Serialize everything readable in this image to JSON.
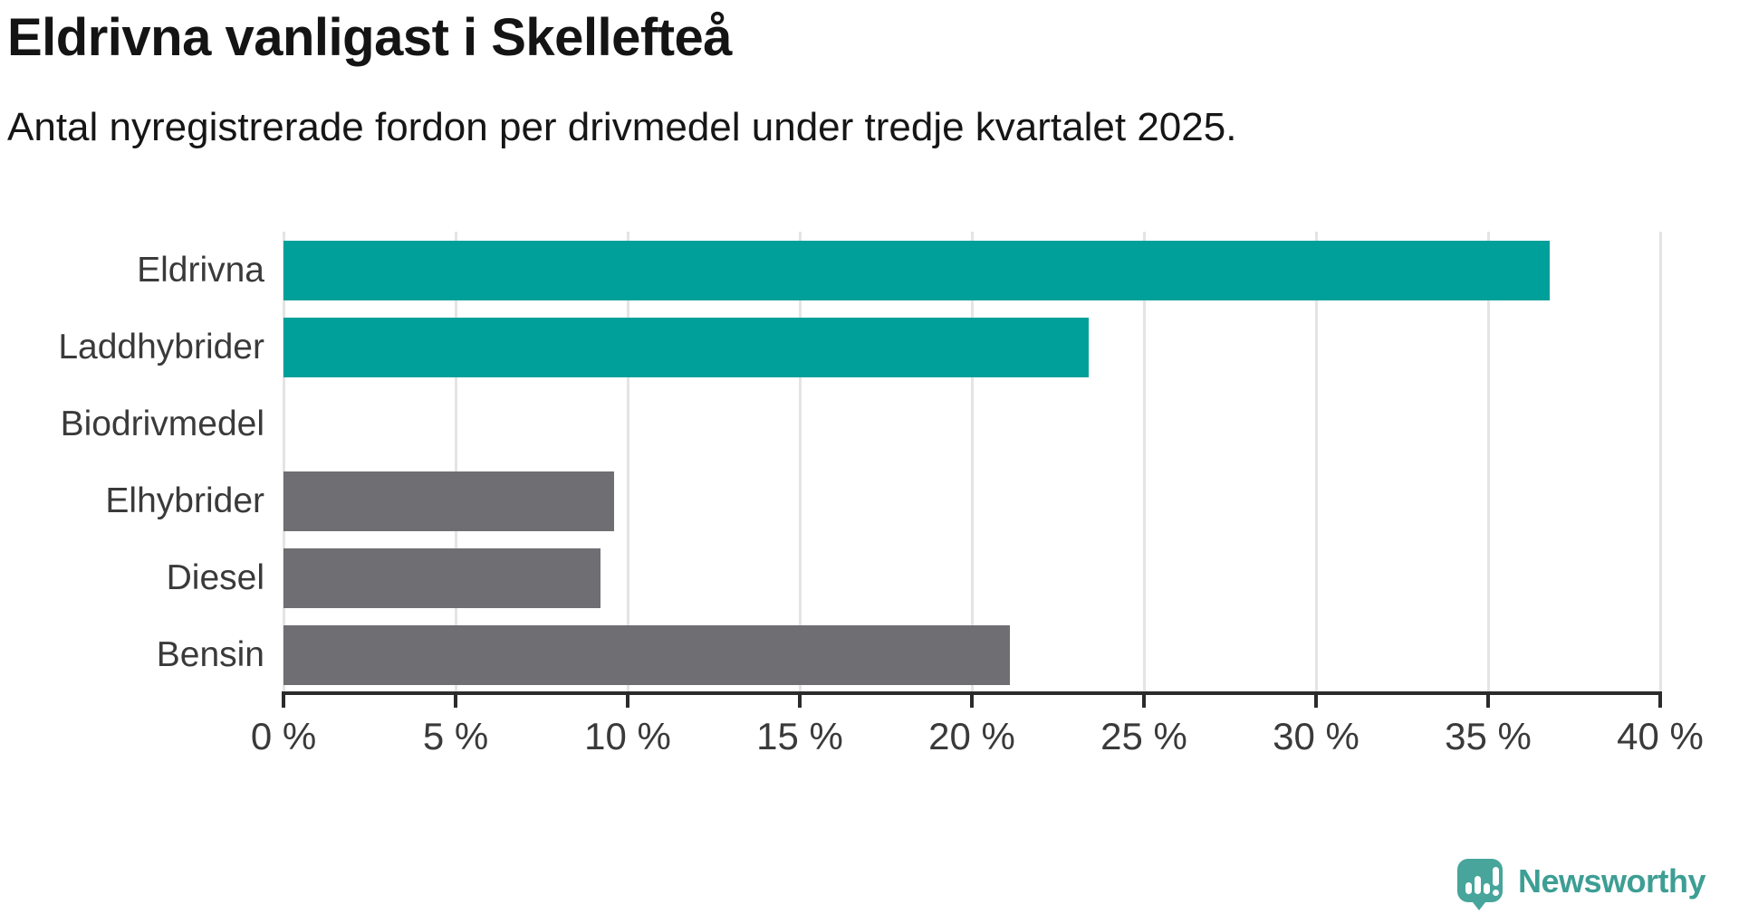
{
  "title": "Eldrivna vanligast i Skellefteå",
  "subtitle": "Antal nyregistrerade fordon per drivmedel under tredje kvartalet 2025.",
  "chart_data": {
    "type": "bar",
    "orientation": "horizontal",
    "title": "Eldrivna vanligast i Skellefteå",
    "subtitle": "Antal nyregistrerade fordon per drivmedel under tredje kvartalet 2025.",
    "categories": [
      "Eldrivna",
      "Laddhybrider",
      "Biodrivmedel",
      "Elhybrider",
      "Diesel",
      "Bensin"
    ],
    "values": [
      36.8,
      23.4,
      0,
      9.6,
      9.2,
      21.1
    ],
    "unit": "%",
    "xlim": [
      0,
      40
    ],
    "x_tick_values": [
      0,
      5,
      10,
      15,
      20,
      25,
      30,
      35,
      40
    ],
    "x_tick_labels": [
      "0 %",
      "5 %",
      "10 %",
      "15 %",
      "20 %",
      "25 %",
      "30 %",
      "35 %",
      "40 %"
    ],
    "grid": true,
    "legend": "none",
    "colors": {
      "highlight": "#00a09a",
      "default": "#6e6e73",
      "bar_colors": [
        "#00a09a",
        "#00a09a",
        "#6e6e73",
        "#6e6e73",
        "#6e6e73",
        "#6e6e73"
      ],
      "gridline": "#e4e4e4",
      "axis": "#2b2b2b",
      "tick_text": "#3a3a3a",
      "label_text": "#3a3a3a"
    }
  },
  "branding": {
    "logo_text": "Newsworthy",
    "logo_color": "#3d9e94",
    "logo_icon_color": "#47a59b",
    "logo_icon": "newsworthy-speech-bubble-chart-icon"
  }
}
